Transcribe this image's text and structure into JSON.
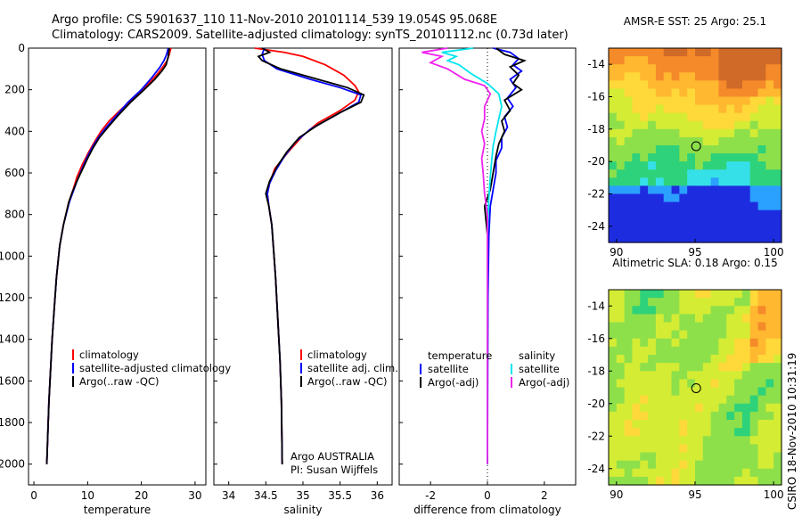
{
  "title": {
    "line1": "Argo profile: CS 5901637_110 11-Nov-2010 20101114_539 19.054S 95.068E",
    "line2": "Climatology: CARS2009. Satellite-adjusted climatology: synTS_20101112.nc (0.73d later)"
  },
  "colors": {
    "clim": "#ff0000",
    "sat": "#0000ff",
    "argo": "#000000",
    "cyan": "#00e5ee",
    "magenta": "#ee22ee"
  },
  "chart_data": [
    {
      "type": "line",
      "id": "temperature",
      "xlabel": "temperature",
      "ylabel": "",
      "xlim": [
        -1,
        32
      ],
      "ylim": [
        2100,
        0
      ],
      "y_reversed": true,
      "xticks": [
        0,
        10,
        20,
        30
      ],
      "yticks": [
        0,
        200,
        400,
        600,
        800,
        1000,
        1200,
        1400,
        1600,
        1800,
        2000
      ],
      "legend": {
        "placement": "lower-right",
        "entries": [
          "climatology",
          "satellite-adjusted climatology",
          "Argo(..raw -QC)"
        ]
      },
      "series": [
        {
          "name": "climatology",
          "color": "clim",
          "points": [
            [
              25.5,
              0
            ],
            [
              25.2,
              30
            ],
            [
              24.8,
              60
            ],
            [
              24.0,
              90
            ],
            [
              22.8,
              130
            ],
            [
              21.0,
              180
            ],
            [
              18.5,
              240
            ],
            [
              16.0,
              300
            ],
            [
              14.0,
              350
            ],
            [
              12.5,
              400
            ],
            [
              11.3,
              450
            ],
            [
              10.2,
              500
            ],
            [
              9.0,
              560
            ],
            [
              8.0,
              620
            ],
            [
              7.3,
              680
            ],
            [
              6.5,
              740
            ],
            [
              5.5,
              850
            ],
            [
              4.8,
              950
            ],
            [
              4.2,
              1100
            ],
            [
              3.8,
              1250
            ],
            [
              3.4,
              1400
            ],
            [
              3.1,
              1550
            ],
            [
              2.8,
              1700
            ],
            [
              2.6,
              1850
            ],
            [
              2.4,
              2000
            ]
          ]
        },
        {
          "name": "satellite-adjusted climatology",
          "color": "sat",
          "points": [
            [
              25.0,
              0
            ],
            [
              24.7,
              30
            ],
            [
              24.2,
              60
            ],
            [
              23.5,
              90
            ],
            [
              22.0,
              140
            ],
            [
              20.0,
              200
            ],
            [
              17.5,
              260
            ],
            [
              15.5,
              320
            ],
            [
              13.5,
              380
            ],
            [
              12.0,
              430
            ],
            [
              10.8,
              480
            ],
            [
              9.8,
              530
            ],
            [
              8.8,
              590
            ],
            [
              8.0,
              640
            ],
            [
              7.3,
              690
            ],
            [
              6.6,
              740
            ],
            [
              5.5,
              850
            ],
            [
              4.8,
              950
            ],
            [
              4.2,
              1100
            ],
            [
              3.8,
              1250
            ],
            [
              3.4,
              1400
            ],
            [
              3.1,
              1550
            ],
            [
              2.8,
              1700
            ],
            [
              2.6,
              1850
            ],
            [
              2.4,
              2000
            ]
          ]
        },
        {
          "name": "Argo(..raw -QC)",
          "color": "argo",
          "points": [
            [
              25.2,
              0
            ],
            [
              25.0,
              40
            ],
            [
              24.6,
              80
            ],
            [
              23.8,
              110
            ],
            [
              22.5,
              150
            ],
            [
              20.5,
              200
            ],
            [
              18.0,
              260
            ],
            [
              15.8,
              320
            ],
            [
              13.8,
              380
            ],
            [
              12.2,
              430
            ],
            [
              11.0,
              480
            ],
            [
              10.0,
              530
            ],
            [
              9.0,
              585
            ],
            [
              8.0,
              640
            ],
            [
              7.2,
              690
            ],
            [
              6.5,
              740
            ],
            [
              5.5,
              850
            ],
            [
              4.8,
              950
            ],
            [
              4.2,
              1100
            ],
            [
              3.8,
              1250
            ],
            [
              3.4,
              1400
            ],
            [
              3.1,
              1550
            ],
            [
              2.8,
              1700
            ],
            [
              2.6,
              1850
            ],
            [
              2.4,
              2000
            ]
          ]
        }
      ]
    },
    {
      "type": "line",
      "id": "salinity",
      "xlabel": "salinity",
      "ylabel": "",
      "xlim": [
        33.8,
        36.2
      ],
      "ylim": [
        2100,
        0
      ],
      "y_reversed": true,
      "xticks": [
        34,
        34.5,
        35,
        35.5,
        36
      ],
      "xtick_labels": [
        "34",
        "34.5",
        "35",
        "35.5",
        "36"
      ],
      "legend": {
        "placement": "lower-right",
        "entries": [
          "climatology",
          "satellite adj. clim.",
          "Argo(..raw -QC)"
        ]
      },
      "annotations": [
        "Argo AUSTRALIA",
        "PI: Susan Wijffels"
      ],
      "series": [
        {
          "name": "climatology",
          "color": "clim",
          "points": [
            [
              34.35,
              0
            ],
            [
              34.75,
              20
            ],
            [
              35.0,
              40
            ],
            [
              35.3,
              80
            ],
            [
              35.55,
              130
            ],
            [
              35.7,
              180
            ],
            [
              35.75,
              210
            ],
            [
              35.7,
              250
            ],
            [
              35.5,
              300
            ],
            [
              35.2,
              360
            ],
            [
              35.0,
              420
            ],
            [
              34.8,
              500
            ],
            [
              34.62,
              580
            ],
            [
              34.55,
              650
            ],
            [
              34.52,
              700
            ],
            [
              34.54,
              760
            ],
            [
              34.58,
              850
            ],
            [
              34.6,
              950
            ],
            [
              34.63,
              1100
            ],
            [
              34.66,
              1300
            ],
            [
              34.69,
              1500
            ],
            [
              34.71,
              1700
            ],
            [
              34.72,
              2000
            ]
          ]
        },
        {
          "name": "satellite adj. clim.",
          "color": "sat",
          "points": [
            [
              34.48,
              0
            ],
            [
              34.45,
              30
            ],
            [
              34.48,
              60
            ],
            [
              34.65,
              100
            ],
            [
              35.1,
              150
            ],
            [
              35.5,
              190
            ],
            [
              35.78,
              225
            ],
            [
              35.75,
              260
            ],
            [
              35.45,
              320
            ],
            [
              35.1,
              390
            ],
            [
              34.9,
              450
            ],
            [
              34.75,
              520
            ],
            [
              34.63,
              590
            ],
            [
              34.55,
              650
            ],
            [
              34.52,
              700
            ],
            [
              34.54,
              760
            ],
            [
              34.58,
              850
            ],
            [
              34.6,
              950
            ],
            [
              34.63,
              1100
            ],
            [
              34.66,
              1300
            ],
            [
              34.69,
              1500
            ],
            [
              34.71,
              1700
            ],
            [
              34.72,
              2000
            ]
          ]
        },
        {
          "name": "Argo(..raw -QC)",
          "color": "argo",
          "points": [
            [
              34.45,
              0
            ],
            [
              34.55,
              20
            ],
            [
              34.4,
              40
            ],
            [
              34.45,
              60
            ],
            [
              34.7,
              100
            ],
            [
              35.2,
              150
            ],
            [
              35.6,
              190
            ],
            [
              35.82,
              225
            ],
            [
              35.78,
              260
            ],
            [
              35.5,
              310
            ],
            [
              35.2,
              370
            ],
            [
              34.95,
              430
            ],
            [
              34.78,
              500
            ],
            [
              34.65,
              570
            ],
            [
              34.55,
              640
            ],
            [
              34.5,
              700
            ],
            [
              34.54,
              760
            ],
            [
              34.58,
              850
            ],
            [
              34.6,
              950
            ],
            [
              34.63,
              1100
            ],
            [
              34.66,
              1300
            ],
            [
              34.69,
              1500
            ],
            [
              34.71,
              1700
            ],
            [
              34.72,
              2000
            ]
          ]
        }
      ]
    },
    {
      "type": "line",
      "id": "difference",
      "xlabel": "difference from climatology",
      "ylabel": "",
      "xlim": [
        -3.1,
        3.1
      ],
      "ylim": [
        2100,
        0
      ],
      "y_reversed": true,
      "xticks": [
        -2,
        0,
        2
      ],
      "legend": {
        "placement": "lower-center",
        "headers": [
          "temperature",
          "salinity"
        ],
        "entries": [
          "satellite",
          "Argo(-adj)",
          "satellite",
          "Argo(-adj)"
        ]
      },
      "series": [
        {
          "name": "temperature satellite",
          "color": "sat",
          "points": [
            [
              0.2,
              0
            ],
            [
              0.8,
              20
            ],
            [
              1.1,
              50
            ],
            [
              0.9,
              80
            ],
            [
              1.2,
              110
            ],
            [
              0.8,
              150
            ],
            [
              1.0,
              190
            ],
            [
              0.7,
              240
            ],
            [
              0.9,
              280
            ],
            [
              0.6,
              330
            ],
            [
              0.7,
              380
            ],
            [
              0.5,
              430
            ],
            [
              0.5,
              480
            ],
            [
              0.3,
              540
            ],
            [
              0.3,
              600
            ],
            [
              0.2,
              680
            ],
            [
              0.1,
              760
            ],
            [
              0.05,
              900
            ],
            [
              0.02,
              1200
            ],
            [
              0.0,
              2000
            ]
          ]
        },
        {
          "name": "temperature Argo(-adj)",
          "color": "argo",
          "points": [
            [
              0.3,
              0
            ],
            [
              0.6,
              30
            ],
            [
              1.3,
              60
            ],
            [
              0.8,
              90
            ],
            [
              1.1,
              130
            ],
            [
              0.9,
              170
            ],
            [
              1.2,
              200
            ],
            [
              0.6,
              250
            ],
            [
              0.8,
              300
            ],
            [
              0.5,
              350
            ],
            [
              0.6,
              400
            ],
            [
              0.4,
              460
            ],
            [
              0.3,
              520
            ],
            [
              0.2,
              600
            ],
            [
              0.1,
              680
            ],
            [
              -0.1,
              760
            ],
            [
              0.0,
              900
            ],
            [
              0.0,
              1200
            ],
            [
              0.0,
              2000
            ]
          ]
        },
        {
          "name": "salinity satellite",
          "color": "cyan",
          "points": [
            [
              -0.5,
              0
            ],
            [
              -1.6,
              20
            ],
            [
              -1.1,
              40
            ],
            [
              -1.4,
              60
            ],
            [
              -1.0,
              80
            ],
            [
              -0.6,
              120
            ],
            [
              0.0,
              170
            ],
            [
              0.4,
              220
            ],
            [
              0.5,
              280
            ],
            [
              0.4,
              340
            ],
            [
              0.3,
              400
            ],
            [
              0.2,
              470
            ],
            [
              0.15,
              540
            ],
            [
              0.1,
              620
            ],
            [
              0.05,
              720
            ],
            [
              0.0,
              900
            ],
            [
              0.0,
              1300
            ],
            [
              0.0,
              2000
            ]
          ]
        },
        {
          "name": "salinity Argo(-adj)",
          "color": "magenta",
          "points": [
            [
              -1.4,
              0
            ],
            [
              -2.3,
              20
            ],
            [
              -1.6,
              40
            ],
            [
              -2.0,
              70
            ],
            [
              -1.4,
              100
            ],
            [
              -0.8,
              150
            ],
            [
              -0.1,
              180
            ],
            [
              0.1,
              220
            ],
            [
              -0.1,
              280
            ],
            [
              -0.1,
              340
            ],
            [
              -0.2,
              400
            ],
            [
              -0.1,
              460
            ],
            [
              -0.2,
              530
            ],
            [
              -0.15,
              600
            ],
            [
              -0.1,
              700
            ],
            [
              0.0,
              800
            ],
            [
              0.0,
              1200
            ],
            [
              0.0,
              2000
            ]
          ]
        }
      ]
    },
    {
      "type": "heatmap",
      "id": "sst-map",
      "title": "AMSR-E SST: 25 Argo: 25.1",
      "xlim": [
        89.5,
        100.5
      ],
      "ylim": [
        -25,
        -13
      ],
      "xticks": [
        90,
        95,
        100
      ],
      "yticks": [
        -14,
        -16,
        -18,
        -20,
        -22,
        -24
      ],
      "marker": [
        95.068,
        -19.054
      ],
      "colorscale": [
        "#1e2ce0",
        "#2aa0ff",
        "#36e0e8",
        "#2ed27a",
        "#8ee04a",
        "#d4ec34",
        "#ffd83a",
        "#ffb830",
        "#f58a2a",
        "#d06a28"
      ]
    },
    {
      "type": "heatmap",
      "id": "sla-map",
      "title": "Altimetric SLA: 0.18 Argo: 0.15",
      "xlim": [
        89.5,
        100.5
      ],
      "ylim": [
        -25,
        -13
      ],
      "xticks": [
        90,
        95,
        100
      ],
      "yticks": [
        -14,
        -16,
        -18,
        -20,
        -22,
        -24
      ],
      "marker": [
        95.068,
        -19.054
      ],
      "colorscale": [
        "#1e2ce0",
        "#2aa0ff",
        "#36e0e8",
        "#2ed27a",
        "#8ee04a",
        "#d4ec34",
        "#ffd83a",
        "#ffb830",
        "#f58a2a",
        "#d06a28"
      ]
    }
  ],
  "footer": "CSIRO 18-Nov-2010 10:31:19"
}
